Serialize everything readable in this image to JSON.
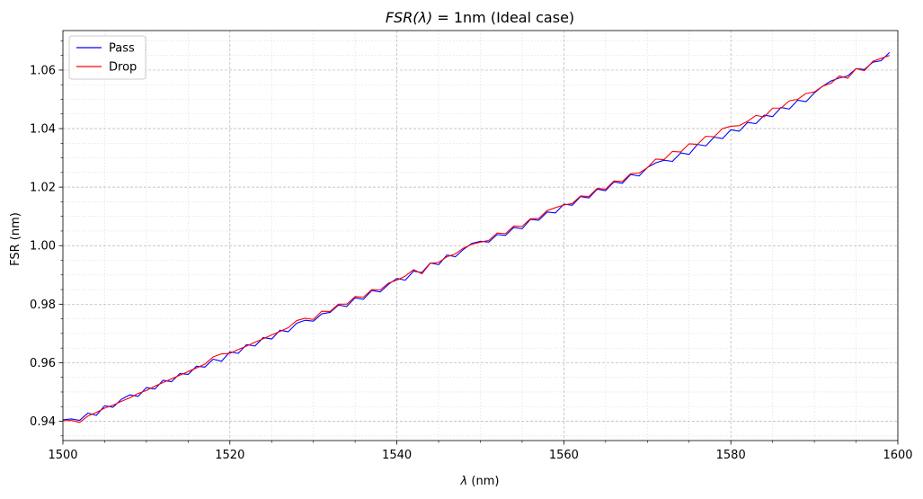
{
  "chart_data": {
    "type": "line",
    "title_parts": {
      "math": "FSR(λ)",
      "rest": " = 1nm (Ideal case)"
    },
    "xlabel_parts": {
      "math": "λ",
      "rest": " (nm)"
    },
    "ylabel": "FSR (nm)",
    "xlim": [
      1500,
      1600
    ],
    "ylim": [
      0.9334,
      1.0735
    ],
    "x_ticks": [
      1500,
      1520,
      1540,
      1560,
      1580,
      1600
    ],
    "x_tick_labels": [
      "1500",
      "1520",
      "1540",
      "1560",
      "1580",
      "1600"
    ],
    "y_ticks": [
      0.94,
      0.96,
      0.98,
      1.0,
      1.02,
      1.04,
      1.06
    ],
    "y_tick_labels": [
      "0.94",
      "0.96",
      "0.98",
      "1.00",
      "1.02",
      "1.04",
      "1.06"
    ],
    "grid": true,
    "minor_grid": true,
    "legend_position": "top-left",
    "series": [
      {
        "name": "Pass",
        "color": "#0000ff",
        "x": [
          1500,
          1501,
          1502,
          1503,
          1504,
          1505,
          1506,
          1507,
          1508,
          1509,
          1510,
          1511,
          1512,
          1513,
          1514,
          1515,
          1516,
          1517,
          1518,
          1519,
          1520,
          1521,
          1522,
          1523,
          1524,
          1525,
          1526,
          1527,
          1528,
          1529,
          1530,
          1531,
          1532,
          1533,
          1534,
          1535,
          1536,
          1537,
          1538,
          1539,
          1540,
          1541,
          1542,
          1543,
          1544,
          1545,
          1546,
          1547,
          1548,
          1549,
          1550,
          1551,
          1552,
          1553,
          1554,
          1555,
          1556,
          1557,
          1558,
          1559,
          1560,
          1561,
          1562,
          1563,
          1564,
          1565,
          1566,
          1567,
          1568,
          1569,
          1570,
          1571,
          1572,
          1573,
          1574,
          1575,
          1576,
          1577,
          1578,
          1579,
          1580,
          1581,
          1582,
          1583,
          1584,
          1585,
          1586,
          1587,
          1588,
          1589,
          1590,
          1591,
          1592,
          1593,
          1594,
          1595,
          1596,
          1597,
          1598,
          1599
        ],
        "y": [
          0.9405,
          0.9408,
          0.9403,
          0.9428,
          0.942,
          0.9453,
          0.9448,
          0.9475,
          0.949,
          0.9485,
          0.9515,
          0.951,
          0.954,
          0.9535,
          0.9563,
          0.956,
          0.9588,
          0.9585,
          0.9612,
          0.9605,
          0.9637,
          0.9632,
          0.9662,
          0.9657,
          0.9686,
          0.9681,
          0.9711,
          0.9706,
          0.9735,
          0.9745,
          0.9742,
          0.9767,
          0.9772,
          0.9797,
          0.9792,
          0.9822,
          0.9817,
          0.9847,
          0.9842,
          0.9868,
          0.9888,
          0.9882,
          0.9913,
          0.9908,
          0.9941,
          0.9935,
          0.9968,
          0.9962,
          0.9988,
          1.0008,
          1.0015,
          1.0012,
          1.0038,
          1.0035,
          1.0062,
          1.0058,
          1.009,
          1.0087,
          1.0115,
          1.0112,
          1.0142,
          1.0138,
          1.0168,
          1.0163,
          1.0193,
          1.0188,
          1.0218,
          1.0213,
          1.0243,
          1.0238,
          1.0267,
          1.0283,
          1.0292,
          1.0288,
          1.0317,
          1.0312,
          1.0346,
          1.0341,
          1.0371,
          1.0366,
          1.0396,
          1.0391,
          1.0421,
          1.0417,
          1.0446,
          1.0441,
          1.0472,
          1.0467,
          1.0497,
          1.0492,
          1.0522,
          1.0545,
          1.0563,
          1.0573,
          1.058,
          1.0605,
          1.0602,
          1.0627,
          1.0632,
          1.066
        ]
      },
      {
        "name": "Drop",
        "color": "#ff0000",
        "x": [
          1500,
          1501,
          1502,
          1503,
          1504,
          1505,
          1506,
          1507,
          1508,
          1509,
          1510,
          1511,
          1512,
          1513,
          1514,
          1515,
          1516,
          1517,
          1518,
          1519,
          1520,
          1521,
          1522,
          1523,
          1524,
          1525,
          1526,
          1527,
          1528,
          1529,
          1530,
          1531,
          1532,
          1533,
          1534,
          1535,
          1536,
          1537,
          1538,
          1539,
          1540,
          1541,
          1542,
          1543,
          1544,
          1545,
          1546,
          1547,
          1548,
          1549,
          1550,
          1551,
          1552,
          1553,
          1554,
          1555,
          1556,
          1557,
          1558,
          1559,
          1560,
          1561,
          1562,
          1563,
          1564,
          1565,
          1566,
          1567,
          1568,
          1569,
          1570,
          1571,
          1572,
          1573,
          1574,
          1575,
          1576,
          1577,
          1578,
          1579,
          1580,
          1581,
          1582,
          1583,
          1584,
          1585,
          1586,
          1587,
          1588,
          1589,
          1590,
          1591,
          1592,
          1593,
          1594,
          1595,
          1596,
          1597,
          1598,
          1599
        ],
        "y": [
          0.9402,
          0.9403,
          0.9396,
          0.9418,
          0.943,
          0.9445,
          0.9455,
          0.9468,
          0.948,
          0.9495,
          0.9505,
          0.952,
          0.9532,
          0.9545,
          0.9557,
          0.957,
          0.9582,
          0.9595,
          0.962,
          0.963,
          0.9632,
          0.9645,
          0.9657,
          0.967,
          0.9682,
          0.9695,
          0.9707,
          0.972,
          0.9744,
          0.9752,
          0.9748,
          0.9776,
          0.9775,
          0.98,
          0.98,
          0.9826,
          0.9824,
          0.985,
          0.9849,
          0.9872,
          0.9882,
          0.9896,
          0.9918,
          0.9904,
          0.994,
          0.9943,
          0.9962,
          0.9972,
          0.9992,
          1.0005,
          1.0012,
          1.0018,
          1.0043,
          1.0041,
          1.0067,
          1.0066,
          1.0092,
          1.0093,
          1.012,
          1.013,
          1.0139,
          1.0144,
          1.017,
          1.0168,
          1.0196,
          1.0193,
          1.0221,
          1.0219,
          1.0246,
          1.0248,
          1.0266,
          1.0296,
          1.0294,
          1.0322,
          1.032,
          1.0348,
          1.0346,
          1.0374,
          1.0372,
          1.04,
          1.0408,
          1.041,
          1.0425,
          1.0445,
          1.044,
          1.047,
          1.047,
          1.0495,
          1.05,
          1.052,
          1.0525,
          1.0545,
          1.0555,
          1.058,
          1.0572,
          1.0605,
          1.0598,
          1.063,
          1.064,
          1.065
        ]
      }
    ]
  }
}
